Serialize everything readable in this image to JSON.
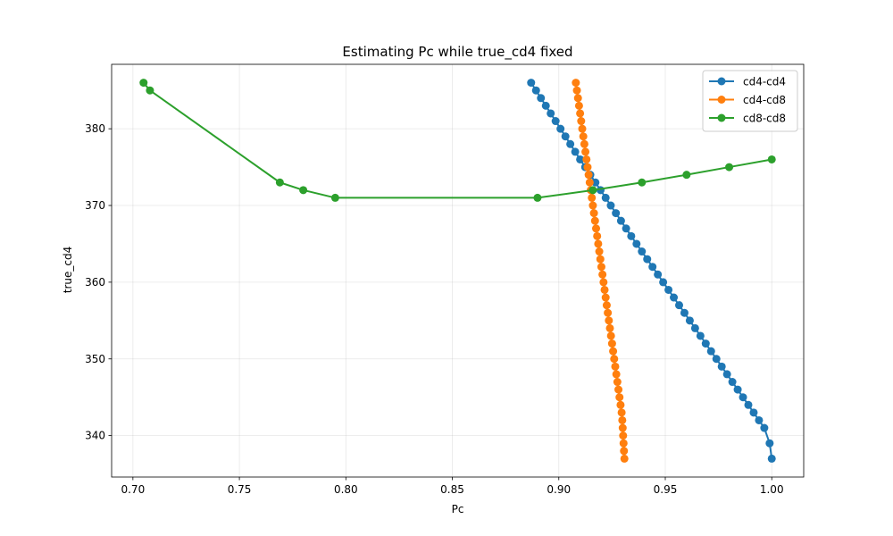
{
  "chart_data": {
    "type": "line",
    "title": "Estimating Pc while true_cd4 fixed",
    "xlabel": "Pc",
    "ylabel": "true_cd4",
    "xlim": [
      0.69,
      1.015
    ],
    "ylim": [
      334.6,
      388.4
    ],
    "xticks": [
      0.7,
      0.75,
      0.8,
      0.85,
      0.9,
      0.95,
      1.0
    ],
    "xtick_labels": [
      "0.70",
      "0.75",
      "0.80",
      "0.85",
      "0.90",
      "0.95",
      "1.00"
    ],
    "yticks": [
      340,
      350,
      360,
      370,
      380
    ],
    "ytick_labels": [
      "340",
      "350",
      "360",
      "370",
      "380"
    ],
    "grid": true,
    "legend_position": "top-right",
    "series": [
      {
        "name": "cd4-cd4",
        "color": "#1f77b4",
        "x": [
          0.887,
          0.8893,
          0.8916,
          0.8939,
          0.8962,
          0.8985,
          0.9008,
          0.9031,
          0.9054,
          0.9077,
          0.91,
          0.9124,
          0.9148,
          0.9172,
          0.9196,
          0.922,
          0.9244,
          0.9268,
          0.9292,
          0.9316,
          0.934,
          0.9365,
          0.939,
          0.9415,
          0.944,
          0.9465,
          0.949,
          0.9515,
          0.954,
          0.9565,
          0.959,
          0.9615,
          0.964,
          0.9665,
          0.969,
          0.9715,
          0.974,
          0.9765,
          0.979,
          0.9815,
          0.984,
          0.9865,
          0.989,
          0.9915,
          0.994,
          0.9965,
          0.999,
          1.0
        ],
        "y": [
          386,
          385,
          384,
          383,
          382,
          381,
          380,
          379,
          378,
          377,
          376,
          375,
          374,
          373,
          372,
          371,
          370,
          369,
          368,
          367,
          366,
          365,
          364,
          363,
          362,
          361,
          360,
          359,
          358,
          357,
          356,
          355,
          354,
          353,
          352,
          351,
          350,
          349,
          348,
          347,
          346,
          345,
          344,
          343,
          342,
          341,
          339,
          337
        ]
      },
      {
        "name": "cd4-cd8",
        "color": "#ff7f0e",
        "x": [
          0.908,
          0.9085,
          0.909,
          0.9095,
          0.91,
          0.9105,
          0.911,
          0.9115,
          0.912,
          0.9125,
          0.913,
          0.9135,
          0.914,
          0.9145,
          0.915,
          0.9155,
          0.916,
          0.9165,
          0.917,
          0.9175,
          0.918,
          0.9185,
          0.919,
          0.9195,
          0.92,
          0.9205,
          0.921,
          0.9215,
          0.922,
          0.9225,
          0.923,
          0.9235,
          0.924,
          0.9245,
          0.925,
          0.9255,
          0.926,
          0.9265,
          0.927,
          0.9275,
          0.928,
          0.9285,
          0.929,
          0.9295,
          0.9298,
          0.93,
          0.9302,
          0.9304,
          0.9306,
          0.9308
        ],
        "y": [
          386,
          385,
          384,
          383,
          382,
          381,
          380,
          379,
          378,
          377,
          376,
          375,
          374,
          373,
          372,
          371,
          370,
          369,
          368,
          367,
          366,
          365,
          364,
          363,
          362,
          361,
          360,
          359,
          358,
          357,
          356,
          355,
          354,
          353,
          352,
          351,
          350,
          349,
          348,
          347,
          346,
          345,
          344,
          343,
          342,
          341,
          340,
          339,
          338,
          337
        ]
      },
      {
        "name": "cd8-cd8",
        "color": "#2ca02c",
        "x": [
          0.705,
          0.708,
          0.769,
          0.78,
          0.795,
          0.89,
          0.916,
          0.939,
          0.96,
          0.98,
          1.0
        ],
        "y": [
          386,
          385,
          373,
          372,
          371,
          371,
          372,
          373,
          374,
          375,
          376
        ]
      }
    ]
  }
}
